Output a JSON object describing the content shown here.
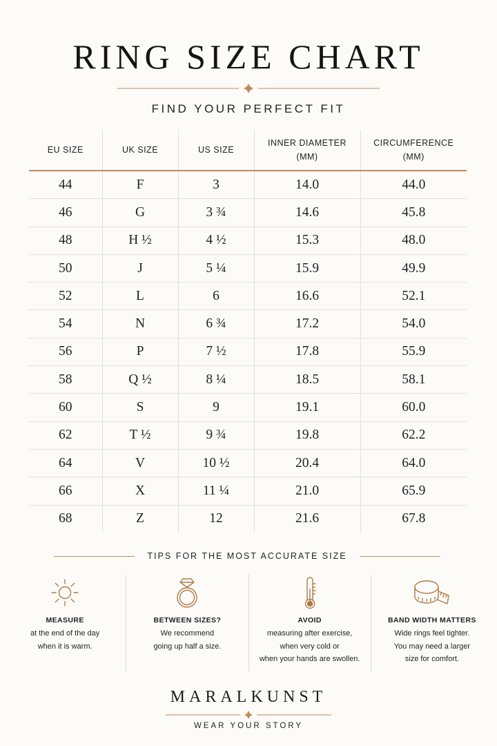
{
  "header": {
    "title": "RING SIZE CHART",
    "subtitle": "FIND YOUR PERFECT FIT"
  },
  "colors": {
    "accent": "#c08a57",
    "text": "#1e1e1e",
    "background": "#fcfbf8"
  },
  "table": {
    "headers": [
      {
        "line1": "EU SIZE",
        "line2": ""
      },
      {
        "line1": "UK SIZE",
        "line2": ""
      },
      {
        "line1": "US SIZE",
        "line2": ""
      },
      {
        "line1": "INNER DIAMETER",
        "line2": "(MM)"
      },
      {
        "line1": "CIRCUMFERENCE",
        "line2": "(MM)"
      }
    ],
    "rows": [
      [
        "44",
        "F",
        "3",
        "14.0",
        "44.0"
      ],
      [
        "46",
        "G",
        "3 ¾",
        "14.6",
        "45.8"
      ],
      [
        "48",
        "H ½",
        "4 ½",
        "15.3",
        "48.0"
      ],
      [
        "50",
        "J",
        "5 ¼",
        "15.9",
        "49.9"
      ],
      [
        "52",
        "L",
        "6",
        "16.6",
        "52.1"
      ],
      [
        "54",
        "N",
        "6 ¾",
        "17.2",
        "54.0"
      ],
      [
        "56",
        "P",
        "7 ½",
        "17.8",
        "55.9"
      ],
      [
        "58",
        "Q ½",
        "8 ¼",
        "18.5",
        "58.1"
      ],
      [
        "60",
        "S",
        "9",
        "19.1",
        "60.0"
      ],
      [
        "62",
        "T ½",
        "9 ¾",
        "19.8",
        "62.2"
      ],
      [
        "64",
        "V",
        "10 ½",
        "20.4",
        "64.0"
      ],
      [
        "66",
        "X",
        "11 ¼",
        "21.0",
        "65.9"
      ],
      [
        "68",
        "Z",
        "12",
        "21.6",
        "67.8"
      ]
    ]
  },
  "tips": {
    "heading": "TIPS FOR THE MOST ACCURATE SIZE",
    "items": [
      {
        "icon": "sun-icon",
        "title": "MEASURE",
        "text": "at the end of the day\nwhen it is warm."
      },
      {
        "icon": "ring-icon",
        "title": "BETWEEN SIZES?",
        "text": "We recommend\ngoing up half a size."
      },
      {
        "icon": "thermometer-icon",
        "title": "AVOID",
        "text": "measuring after exercise,\nwhen very cold or\nwhen your hands are swollen."
      },
      {
        "icon": "measuring-tape-icon",
        "title": "BAND WIDTH MATTERS",
        "text": "Wide rings feel tighter.\nYou may need a larger\nsize for comfort."
      }
    ]
  },
  "footer": {
    "brand": "MARALKUNST",
    "tagline": "WEAR YOUR STORY"
  }
}
